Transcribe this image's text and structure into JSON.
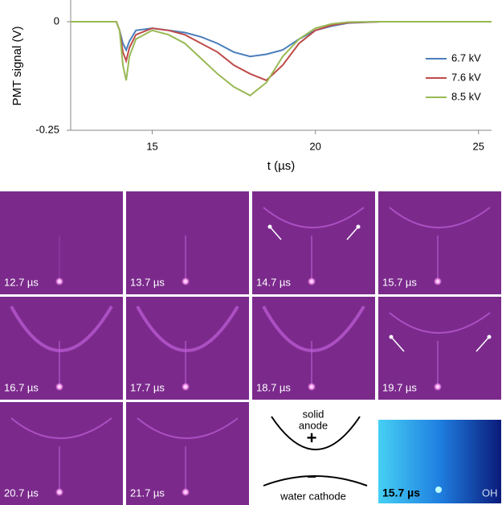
{
  "chart_data": {
    "type": "line",
    "y_label": "PMT signal (V)",
    "x_label": "t (µs)",
    "x": [
      12.5,
      13,
      13.5,
      13.9,
      14.0,
      14.1,
      14.2,
      14.3,
      14.5,
      15,
      15.5,
      16,
      16.5,
      17,
      17.5,
      18,
      18.5,
      19,
      19.5,
      20,
      20.5,
      21,
      22,
      23,
      24,
      25,
      25.4
    ],
    "series": [
      {
        "name": "6.7 kV",
        "color": "#4a7ebb",
        "values": [
          0,
          0,
          0,
          0,
          -0.02,
          -0.05,
          -0.065,
          -0.045,
          -0.02,
          -0.015,
          -0.02,
          -0.025,
          -0.035,
          -0.05,
          -0.07,
          -0.08,
          -0.075,
          -0.065,
          -0.04,
          -0.02,
          -0.01,
          -0.003,
          0,
          0,
          0,
          0,
          0
        ]
      },
      {
        "name": "7.6 kV",
        "color": "#be4b48",
        "values": [
          0,
          0,
          0,
          0,
          -0.02,
          -0.07,
          -0.09,
          -0.06,
          -0.03,
          -0.015,
          -0.02,
          -0.03,
          -0.05,
          -0.07,
          -0.1,
          -0.12,
          -0.135,
          -0.1,
          -0.05,
          -0.02,
          -0.008,
          -0.002,
          0,
          0,
          0,
          0,
          0
        ]
      },
      {
        "name": "8.5 kV",
        "color": "#98b954",
        "values": [
          0,
          0,
          0,
          0,
          -0.02,
          -0.1,
          -0.135,
          -0.08,
          -0.04,
          -0.02,
          -0.03,
          -0.05,
          -0.085,
          -0.12,
          -0.15,
          -0.17,
          -0.14,
          -0.08,
          -0.04,
          -0.015,
          -0.005,
          -0.001,
          0,
          0,
          0,
          0,
          0
        ]
      }
    ],
    "xlim": [
      12.5,
      25.4
    ],
    "ylim": [
      -0.25,
      0.05
    ],
    "xticks": [
      15,
      20,
      25
    ],
    "yticks": [
      0,
      -0.25
    ],
    "legend": "right"
  },
  "panels": [
    "12.7 µs",
    "13.7 µs",
    "14.7 µs",
    "15.7 µs",
    "16.7 µs",
    "17.7 µs",
    "18.7 µs",
    "19.7 µs",
    "20.7 µs",
    "21.7 µs"
  ],
  "schematic": {
    "anode_1": "solid",
    "anode_2": "anode",
    "anode_sign": "+",
    "cathode_sign": "−",
    "cathode": "water cathode"
  },
  "oh_panel": {
    "time": "15.7 µs",
    "species": "OH"
  }
}
